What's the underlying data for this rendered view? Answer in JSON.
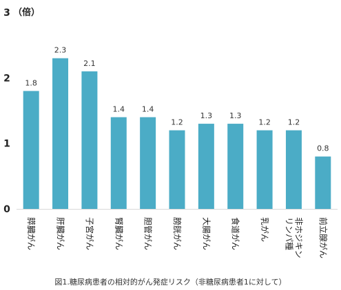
{
  "chart_data": {
    "type": "bar",
    "ylabel": "（倍）",
    "ylim": [
      0,
      3
    ],
    "yticks": [
      0,
      1,
      2,
      3
    ],
    "grid": false,
    "bar_color": "#4bacc6",
    "categories": [
      "膵臓がん",
      "肝臓がん",
      "子宮がん",
      "腎臓がん",
      "胆管がん",
      "膀胱がん",
      "大腸がん",
      "食道がん",
      "乳がん",
      "非ホジキンリンパ種",
      "前立腺がん"
    ],
    "category_lines": [
      [
        "膵臓がん"
      ],
      [
        "肝臓がん"
      ],
      [
        "子宮がん"
      ],
      [
        "腎臓がん"
      ],
      [
        "胆管がん"
      ],
      [
        "膀胱がん"
      ],
      [
        "大腸がん"
      ],
      [
        "食道がん"
      ],
      [
        "乳がん"
      ],
      [
        "非ホジキン",
        "リンパ種"
      ],
      [
        "前立腺がん"
      ]
    ],
    "values": [
      1.8,
      2.3,
      2.1,
      1.4,
      1.4,
      1.2,
      1.3,
      1.3,
      1.2,
      1.2,
      0.8
    ],
    "value_labels": [
      "1.8",
      "2.3",
      "2.1",
      "1.4",
      "1.4",
      "1.2",
      "1.3",
      "1.3",
      "1.2",
      "1.2",
      "0.8"
    ]
  },
  "caption": "図1.糖尿病患者の相対的がん発症リスク（非糖尿病患者1に対して）"
}
